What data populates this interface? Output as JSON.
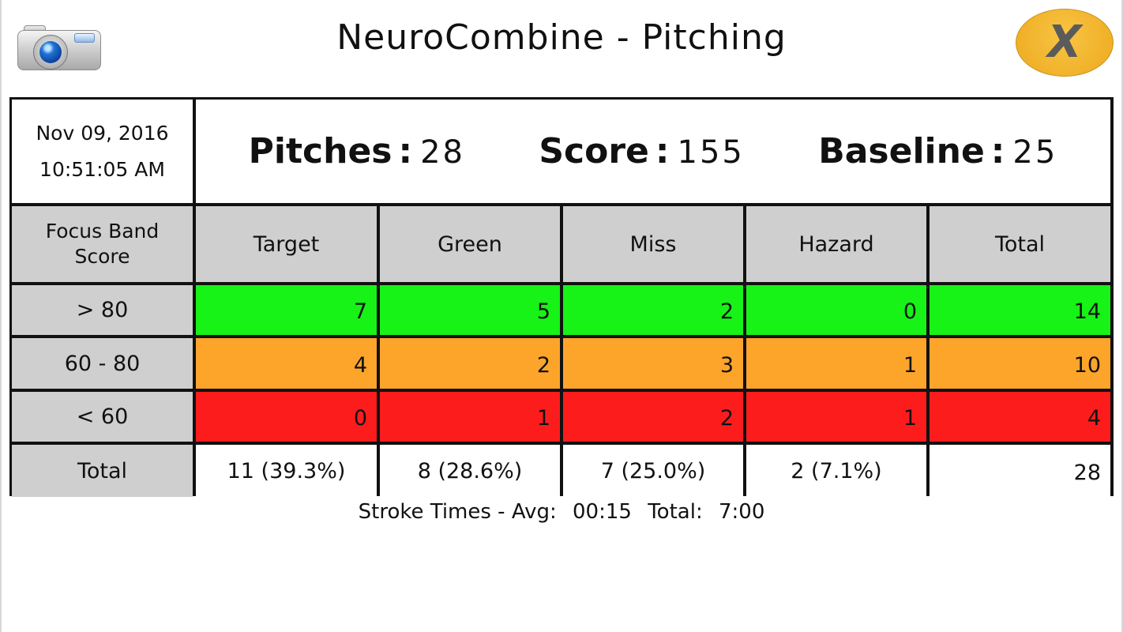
{
  "header": {
    "title": "NeuroCombine - Pitching",
    "close_label": "X"
  },
  "session": {
    "date": "Nov 09, 2016",
    "time": "10:51:05 AM"
  },
  "stats": {
    "pitches_label": "Pitches",
    "pitches_value": "28",
    "score_label": "Score",
    "score_value": "155",
    "baseline_label": "Baseline",
    "baseline_value": "25",
    "separator": ":"
  },
  "table": {
    "corner_label_line1": "Focus Band",
    "corner_label_line2": "Score",
    "columns": [
      "Target",
      "Green",
      "Miss",
      "Hazard",
      "Total"
    ],
    "rows": [
      {
        "label": "> 80",
        "values": [
          "7",
          "5",
          "2",
          "0",
          "14"
        ],
        "color": "#17f217"
      },
      {
        "label": "60 - 80",
        "values": [
          "4",
          "2",
          "3",
          "1",
          "10"
        ],
        "color": "#fda42b"
      },
      {
        "label": "< 60",
        "values": [
          "0",
          "1",
          "2",
          "1",
          "4"
        ],
        "color": "#fc1c1c"
      }
    ],
    "total_row": {
      "label": "Total",
      "values": [
        "11 (39.3%)",
        "8 (28.6%)",
        "7 (25.0%)",
        "2 (7.1%)",
        "28"
      ]
    }
  },
  "footer": {
    "label": "Stroke Times - Avg:",
    "avg": "00:15",
    "total_label": "Total:",
    "total": "7:00"
  },
  "icons": {
    "camera": "camera-icon",
    "close": "close-icon"
  }
}
